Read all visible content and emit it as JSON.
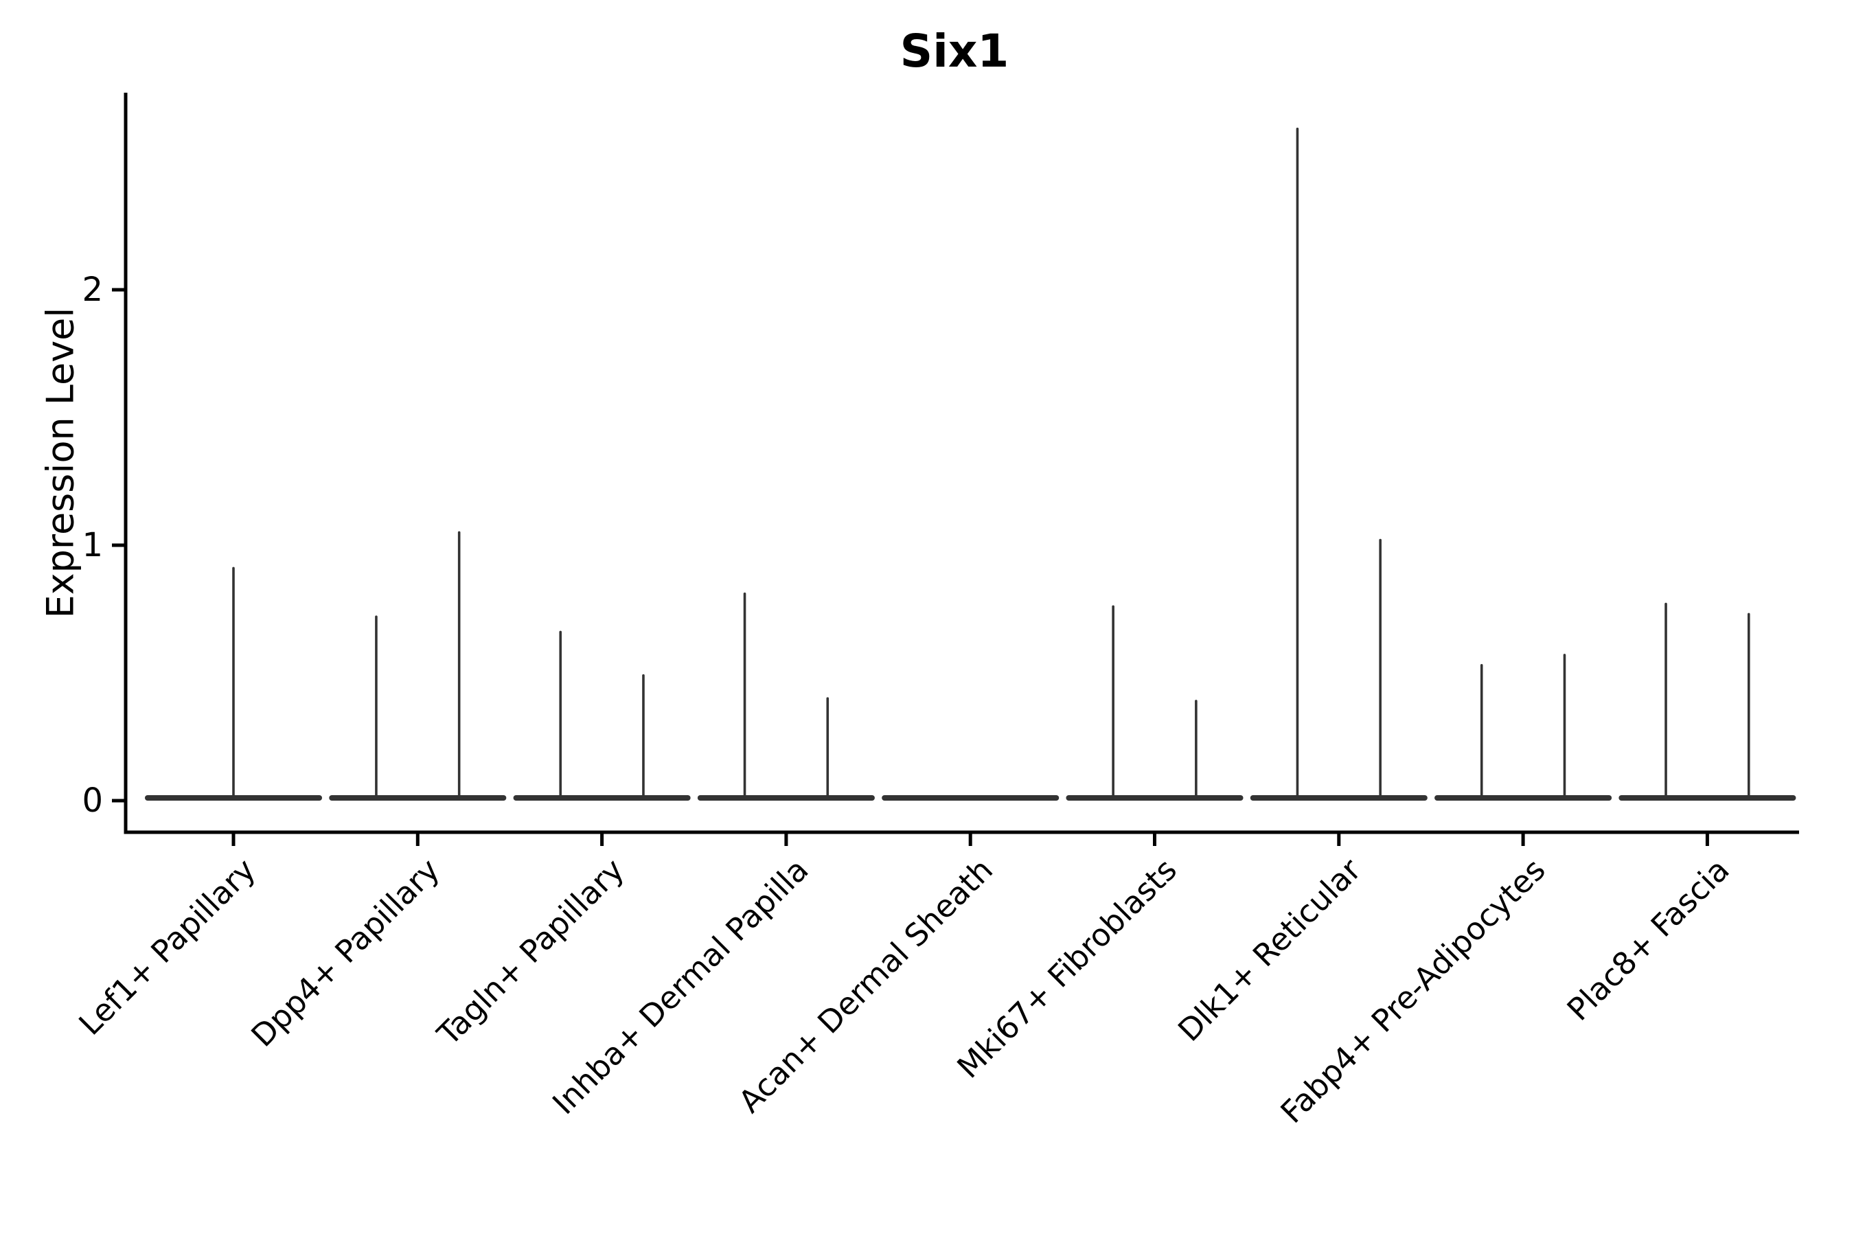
{
  "figure": {
    "title": "Six1"
  },
  "chart_data": {
    "type": "violin",
    "title": "Six1",
    "xlabel": "",
    "ylabel": "Expression Level",
    "ylim": [
      0,
      2.77
    ],
    "yticks": [
      0,
      1,
      2
    ],
    "grid": false,
    "legend": null,
    "description": "Zero-inflated expression violins: flat base at 0 per category plus thin density spikes up to the max expression; two dodged spike positions per category (offset in category-width units).",
    "zero_base_halfwidth": 0.466,
    "categories": [
      "Lef1+ Papillary",
      "Dpp4+ Papillary",
      "Tagln+ Papillary",
      "Inhba+ Dermal Papilla",
      "Acan+ Dermal Sheath",
      "Mki67+ Fibroblasts",
      "Dlk1+ Reticular",
      "Fabp4+ Pre-Adipocytes",
      "Plac8+ Fascia"
    ],
    "violins": [
      {
        "category": "Lef1+ Papillary",
        "spikes": [
          {
            "offset": 0.0,
            "max": 0.91
          }
        ]
      },
      {
        "category": "Dpp4+ Papillary",
        "spikes": [
          {
            "offset": -0.225,
            "max": 0.72
          },
          {
            "offset": 0.225,
            "max": 1.05
          }
        ]
      },
      {
        "category": "Tagln+ Papillary",
        "spikes": [
          {
            "offset": -0.225,
            "max": 0.66
          },
          {
            "offset": 0.225,
            "max": 0.49
          }
        ]
      },
      {
        "category": "Inhba+ Dermal Papilla",
        "spikes": [
          {
            "offset": -0.225,
            "max": 0.81
          },
          {
            "offset": 0.225,
            "max": 0.4
          }
        ]
      },
      {
        "category": "Acan+ Dermal Sheath",
        "spikes": []
      },
      {
        "category": "Mki67+ Fibroblasts",
        "spikes": [
          {
            "offset": -0.225,
            "max": 0.76
          },
          {
            "offset": 0.225,
            "max": 0.39
          }
        ]
      },
      {
        "category": "Dlk1+ Reticular",
        "spikes": [
          {
            "offset": -0.225,
            "max": 2.63
          },
          {
            "offset": 0.225,
            "max": 1.02
          }
        ]
      },
      {
        "category": "Fabp4+ Pre-Adipocytes",
        "spikes": [
          {
            "offset": -0.225,
            "max": 0.53
          },
          {
            "offset": 0.225,
            "max": 0.57
          }
        ]
      },
      {
        "category": "Plac8+ Fascia",
        "spikes": [
          {
            "offset": -0.225,
            "max": 0.77
          },
          {
            "offset": 0.225,
            "max": 0.73
          }
        ]
      }
    ],
    "colors": {
      "violin": "#333333",
      "axis": "#000000",
      "text": "#000000",
      "background": "#ffffff"
    }
  }
}
